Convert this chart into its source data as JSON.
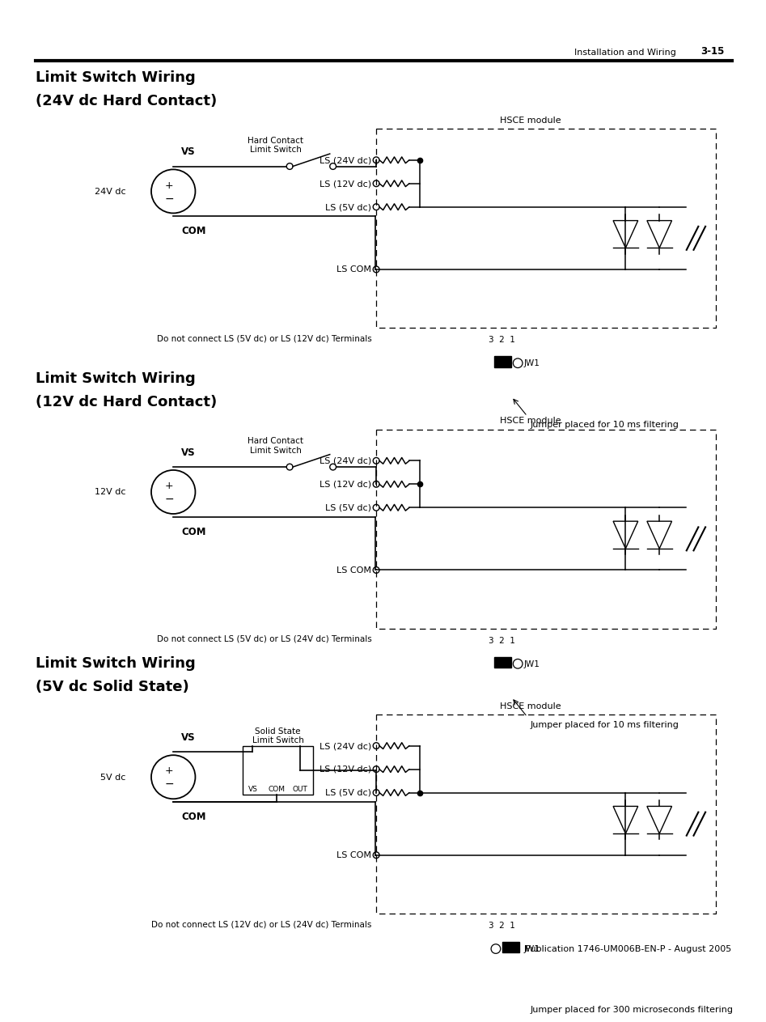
{
  "header_text": "Installation and Wiring",
  "header_page": "3-15",
  "footer_text": "Publication 1746-UM006B-EN-P - August 2005",
  "sections": [
    {
      "title_line1": "Limit Switch Wiring",
      "title_line2": "(24V dc Hard Contact)",
      "voltage_label": "24V dc",
      "switch_label_line1": "Hard Contact",
      "switch_label_line2": "Limit Switch",
      "module_label": "HSCE module",
      "ls_labels": [
        "LS (24V dc)",
        "LS (12V dc)",
        "LS (5V dc)",
        "LS COM"
      ],
      "active_ls": 0,
      "do_not_connect": "Do not connect LS (5V dc) or LS (12V dc) Terminals",
      "jumper_text": "Jumper placed for 10 ms filtering",
      "jumper_position": "right",
      "solid_state": false
    },
    {
      "title_line1": "Limit Switch Wiring",
      "title_line2": "(12V dc Hard Contact)",
      "voltage_label": "12V dc",
      "switch_label_line1": "Hard Contact",
      "switch_label_line2": "Limit Switch",
      "module_label": "HSCE module",
      "ls_labels": [
        "LS (24V dc)",
        "LS (12V dc)",
        "LS (5V dc)",
        "LS COM"
      ],
      "active_ls": 1,
      "do_not_connect": "Do not connect LS (5V dc) or LS (24V dc) Terminals",
      "jumper_text": "Jumper placed for 10 ms filtering",
      "jumper_position": "right",
      "solid_state": false
    },
    {
      "title_line1": "Limit Switch Wiring",
      "title_line2": "(5V dc Solid State)",
      "voltage_label": "5V dc",
      "switch_label_line1": "Solid State",
      "switch_label_line2": "Limit Switch",
      "module_label": "HSCE module",
      "ls_labels": [
        "LS (24V dc)",
        "LS (12V dc)",
        "LS (5V dc)",
        "LS COM"
      ],
      "active_ls": 2,
      "do_not_connect": "Do not connect LS (12V dc) or LS (24V dc) Terminals",
      "jumper_text": "Jumper placed for 300 microseconds filtering",
      "jumper_position": "left",
      "solid_state": true,
      "ss_labels": [
        "VS",
        "COM",
        "OUT"
      ]
    }
  ],
  "bg_color": "#ffffff",
  "line_color": "#000000"
}
